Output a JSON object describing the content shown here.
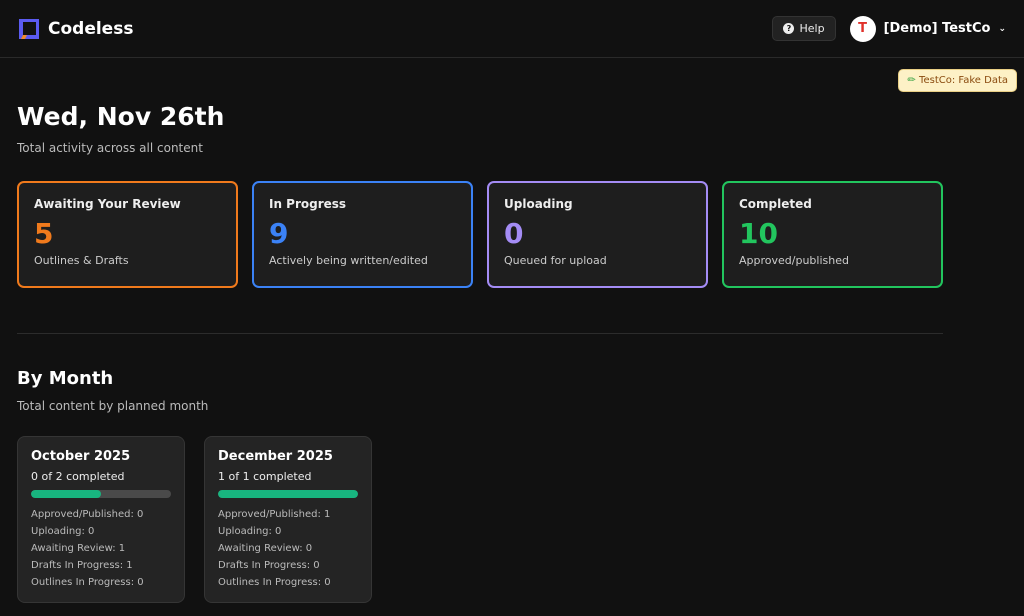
{
  "header": {
    "app_name": "Codeless",
    "help_label": "Help",
    "avatar_letter": "T",
    "org_name": "[Demo] TestCo"
  },
  "badge": "TestCo: Fake Data",
  "title": "Wed, Nov 26th",
  "subtitle": "Total activity across all content",
  "cards": [
    {
      "title": "Awaiting Your Review",
      "value": "5",
      "desc": "Outlines & Drafts",
      "color": "#f07a1c"
    },
    {
      "title": "In Progress",
      "value": "9",
      "desc": "Actively being written/edited",
      "color": "#3b82f6"
    },
    {
      "title": "Uploading",
      "value": "0",
      "desc": "Queued for upload",
      "color": "#a48cf5"
    },
    {
      "title": "Completed",
      "value": "10",
      "desc": "Approved/published",
      "color": "#22c55e"
    }
  ],
  "by_month": {
    "title": "By Month",
    "subtitle": "Total content by planned month",
    "months": [
      {
        "title": "October 2025",
        "completed": "0 of 2 completed",
        "progress": 0.5,
        "stats": [
          "Approved/Published: 0",
          "Uploading: 0",
          "Awaiting Review: 1",
          "Drafts In Progress: 1",
          "Outlines In Progress: 0"
        ]
      },
      {
        "title": "December 2025",
        "completed": "1 of 1 completed",
        "progress": 1,
        "stats": [
          "Approved/Published: 1",
          "Uploading: 0",
          "Awaiting Review: 0",
          "Drafts In Progress: 0",
          "Outlines In Progress: 0"
        ]
      }
    ]
  }
}
